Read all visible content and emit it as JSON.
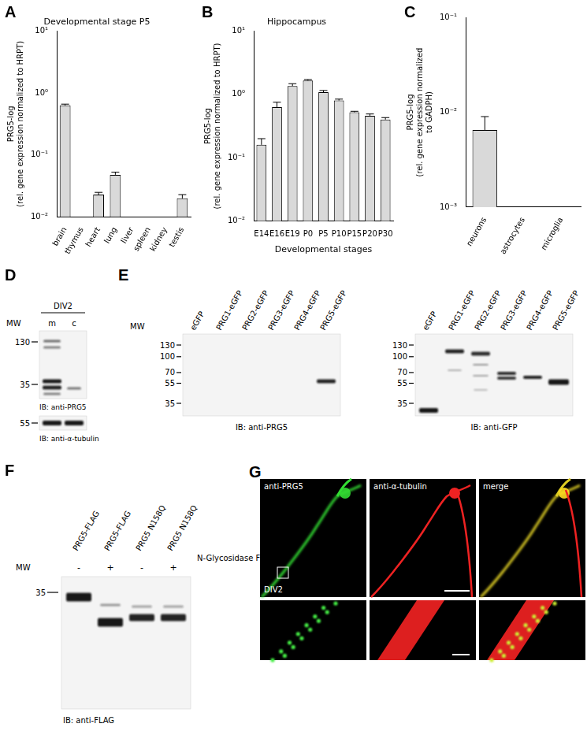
{
  "chart_data": [
    {
      "panel": "A",
      "type": "bar",
      "title": "Developmental stage P5",
      "y_label": [
        "PRG5-log",
        "(rel. gene expression normalized to HRPT)"
      ],
      "categories": [
        "brain",
        "thymus",
        "heart",
        "lung",
        "liver",
        "spleen",
        "kidney",
        "testis"
      ],
      "values": [
        0.63,
        null,
        0.023,
        0.048,
        null,
        null,
        null,
        0.02
      ],
      "errors": [
        0.03,
        null,
        0.002,
        0.005,
        null,
        null,
        null,
        0.003
      ],
      "color": "#d9d9d9",
      "log": "y",
      "ylim": [
        0.01,
        10
      ],
      "yticks": [
        {
          "value": 0.01,
          "label": "10⁻²"
        },
        {
          "value": 0.1,
          "label": "10⁻¹"
        },
        {
          "value": 1,
          "label": "10⁰"
        },
        {
          "value": 10,
          "label": "10¹"
        }
      ],
      "grid": false
    },
    {
      "panel": "B",
      "type": "bar",
      "title": "Hippocampus",
      "y_label": [
        "PRG5-log",
        "(rel. gene expression normalized to HRPT)"
      ],
      "x_label": "Developmental stages",
      "categories": [
        "E14",
        "E16",
        "E19",
        "P0",
        "P5",
        "P10",
        "P15",
        "P20",
        "P30"
      ],
      "values": [
        0.16,
        0.63,
        1.35,
        1.65,
        1.08,
        0.8,
        0.52,
        0.46,
        0.4
      ],
      "errors": [
        0.04,
        0.12,
        0.12,
        0.06,
        0.07,
        0.04,
        0.02,
        0.03,
        0.03
      ],
      "color": "#d9d9d9",
      "log": "y",
      "ylim": [
        0.01,
        10
      ],
      "yticks": [
        {
          "value": 0.01,
          "label": "10⁻²"
        },
        {
          "value": 0.1,
          "label": "10⁻¹"
        },
        {
          "value": 1,
          "label": "10⁰"
        },
        {
          "value": 10,
          "label": "10¹"
        }
      ],
      "grid": false
    },
    {
      "panel": "C",
      "type": "bar",
      "y_label": [
        "PRG5-log",
        "(rel. gene expression normalized",
        "to GADPH)"
      ],
      "categories": [
        "neurons",
        "astrocytes",
        "microglia"
      ],
      "values": [
        0.0065,
        null,
        null
      ],
      "errors": [
        0.0025,
        null,
        null
      ],
      "color": "#d9d9d9",
      "log": "y",
      "ylim": [
        0.001,
        0.1
      ],
      "yticks": [
        {
          "value": 0.001,
          "label": "10⁻³"
        },
        {
          "value": 0.01,
          "label": "10⁻²"
        },
        {
          "value": 0.1,
          "label": "10⁻¹"
        }
      ],
      "grid": false
    }
  ],
  "blots": [
    {
      "panel": "D",
      "header": "DIV2",
      "mw_label": "MW",
      "lanes": [
        "m",
        "c"
      ],
      "membranes": [
        {
          "mw_markers": [
            130,
            35
          ],
          "ib": "IB: anti-PRG5"
        },
        {
          "mw_markers": [
            55
          ],
          "ib": "IB: anti-α-tubulin"
        }
      ]
    },
    {
      "panel": "E",
      "mw_label": "MW",
      "lanes": [
        "eGFP",
        "PRG1-eGFP",
        "PRG2-eGFP",
        "PRG3-eGFP",
        "PRG4-eGFP",
        "PRG5-eGFP"
      ],
      "membranes": [
        {
          "mw_markers": [
            130,
            100,
            70,
            55,
            35
          ],
          "ib": "IB: anti-PRG5"
        },
        {
          "mw_markers": [
            130,
            100,
            70,
            55,
            35
          ],
          "ib": "IB: anti-GFP"
        }
      ]
    },
    {
      "panel": "F",
      "mw_label": "MW",
      "lanes": [
        "PRG5-FLAG",
        "PRG5-FLAG",
        "PRG5 N158Q",
        "PRG5 N158Q"
      ],
      "treatment": {
        "label": "N-Glycosidase F",
        "values": [
          "-",
          "+",
          "-",
          "+"
        ]
      },
      "membranes": [
        {
          "mw_markers": [
            35
          ],
          "ib": "IB: anti-FLAG"
        }
      ]
    }
  ],
  "micrographs": {
    "panel": "G",
    "channels": [
      "anti-PRG5",
      "anti-α-tubulin",
      "merge"
    ],
    "annotation": "DIV2"
  }
}
